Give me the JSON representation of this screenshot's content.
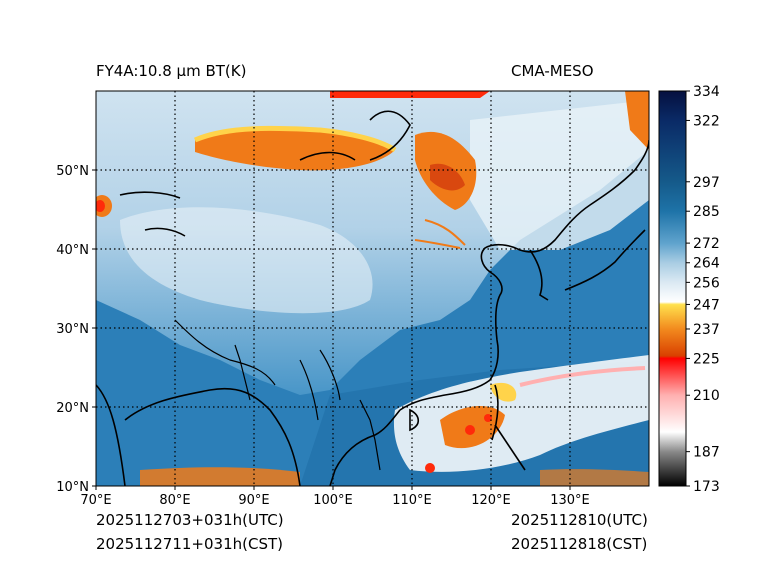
{
  "header": {
    "left_title": "FY4A:10.8 µm BT(K)",
    "right_title": "CMA-MESO"
  },
  "footer": {
    "init_utc": "2025112703+031h(UTC)",
    "init_cst": "2025112711+031h(CST)",
    "valid_utc": "2025112810(UTC)",
    "valid_cst": "2025112818(CST)"
  },
  "map": {
    "lon_range": [
      70,
      140
    ],
    "lat_range": [
      10,
      60
    ],
    "x_ticks": [
      {
        "value": 70,
        "label": "70°E"
      },
      {
        "value": 80,
        "label": "80°E"
      },
      {
        "value": 90,
        "label": "90°E"
      },
      {
        "value": 100,
        "label": "100°E"
      },
      {
        "value": 110,
        "label": "110°E"
      },
      {
        "value": 120,
        "label": "120°E"
      },
      {
        "value": 130,
        "label": "130°E"
      }
    ],
    "y_ticks": [
      {
        "value": 10,
        "label": "10°N"
      },
      {
        "value": 20,
        "label": "20°N"
      },
      {
        "value": 30,
        "label": "30°N"
      },
      {
        "value": 40,
        "label": "40°N"
      },
      {
        "value": 50,
        "label": "50°N"
      }
    ],
    "grid_lon": [
      80,
      90,
      100,
      110,
      120,
      130
    ],
    "grid_lat": [
      20,
      30,
      40,
      50
    ],
    "colors": {
      "ocean": "#2c7fb8",
      "land_low": "#3d8fc5",
      "land_high": "#cfe3f0",
      "cloud_cold": "#f07a18",
      "cloud_cool": "#ffd34a",
      "cloud_white": "#f4f8fb",
      "coast": "#000000"
    }
  },
  "colorbar": {
    "min": 173,
    "max": 334,
    "labels": [
      334,
      322,
      297,
      285,
      272,
      264,
      256,
      247,
      237,
      225,
      210,
      187,
      173
    ],
    "stops": [
      {
        "value": 173,
        "color": "#000000"
      },
      {
        "value": 187,
        "color": "#8a8a8a"
      },
      {
        "value": 195,
        "color": "#ffffff"
      },
      {
        "value": 210,
        "color": "#ffb0b0"
      },
      {
        "value": 225,
        "color": "#ff0000"
      },
      {
        "value": 226,
        "color": "#d94000"
      },
      {
        "value": 237,
        "color": "#f28a1e"
      },
      {
        "value": 247,
        "color": "#ffe14d"
      },
      {
        "value": 248,
        "color": "#ffffff"
      },
      {
        "value": 256,
        "color": "#dbe9f3"
      },
      {
        "value": 264,
        "color": "#a9cde3"
      },
      {
        "value": 272,
        "color": "#5fa3cd"
      },
      {
        "value": 285,
        "color": "#1e73a8"
      },
      {
        "value": 297,
        "color": "#155a8a"
      },
      {
        "value": 322,
        "color": "#0a2a66"
      },
      {
        "value": 334,
        "color": "#05103f"
      }
    ]
  }
}
